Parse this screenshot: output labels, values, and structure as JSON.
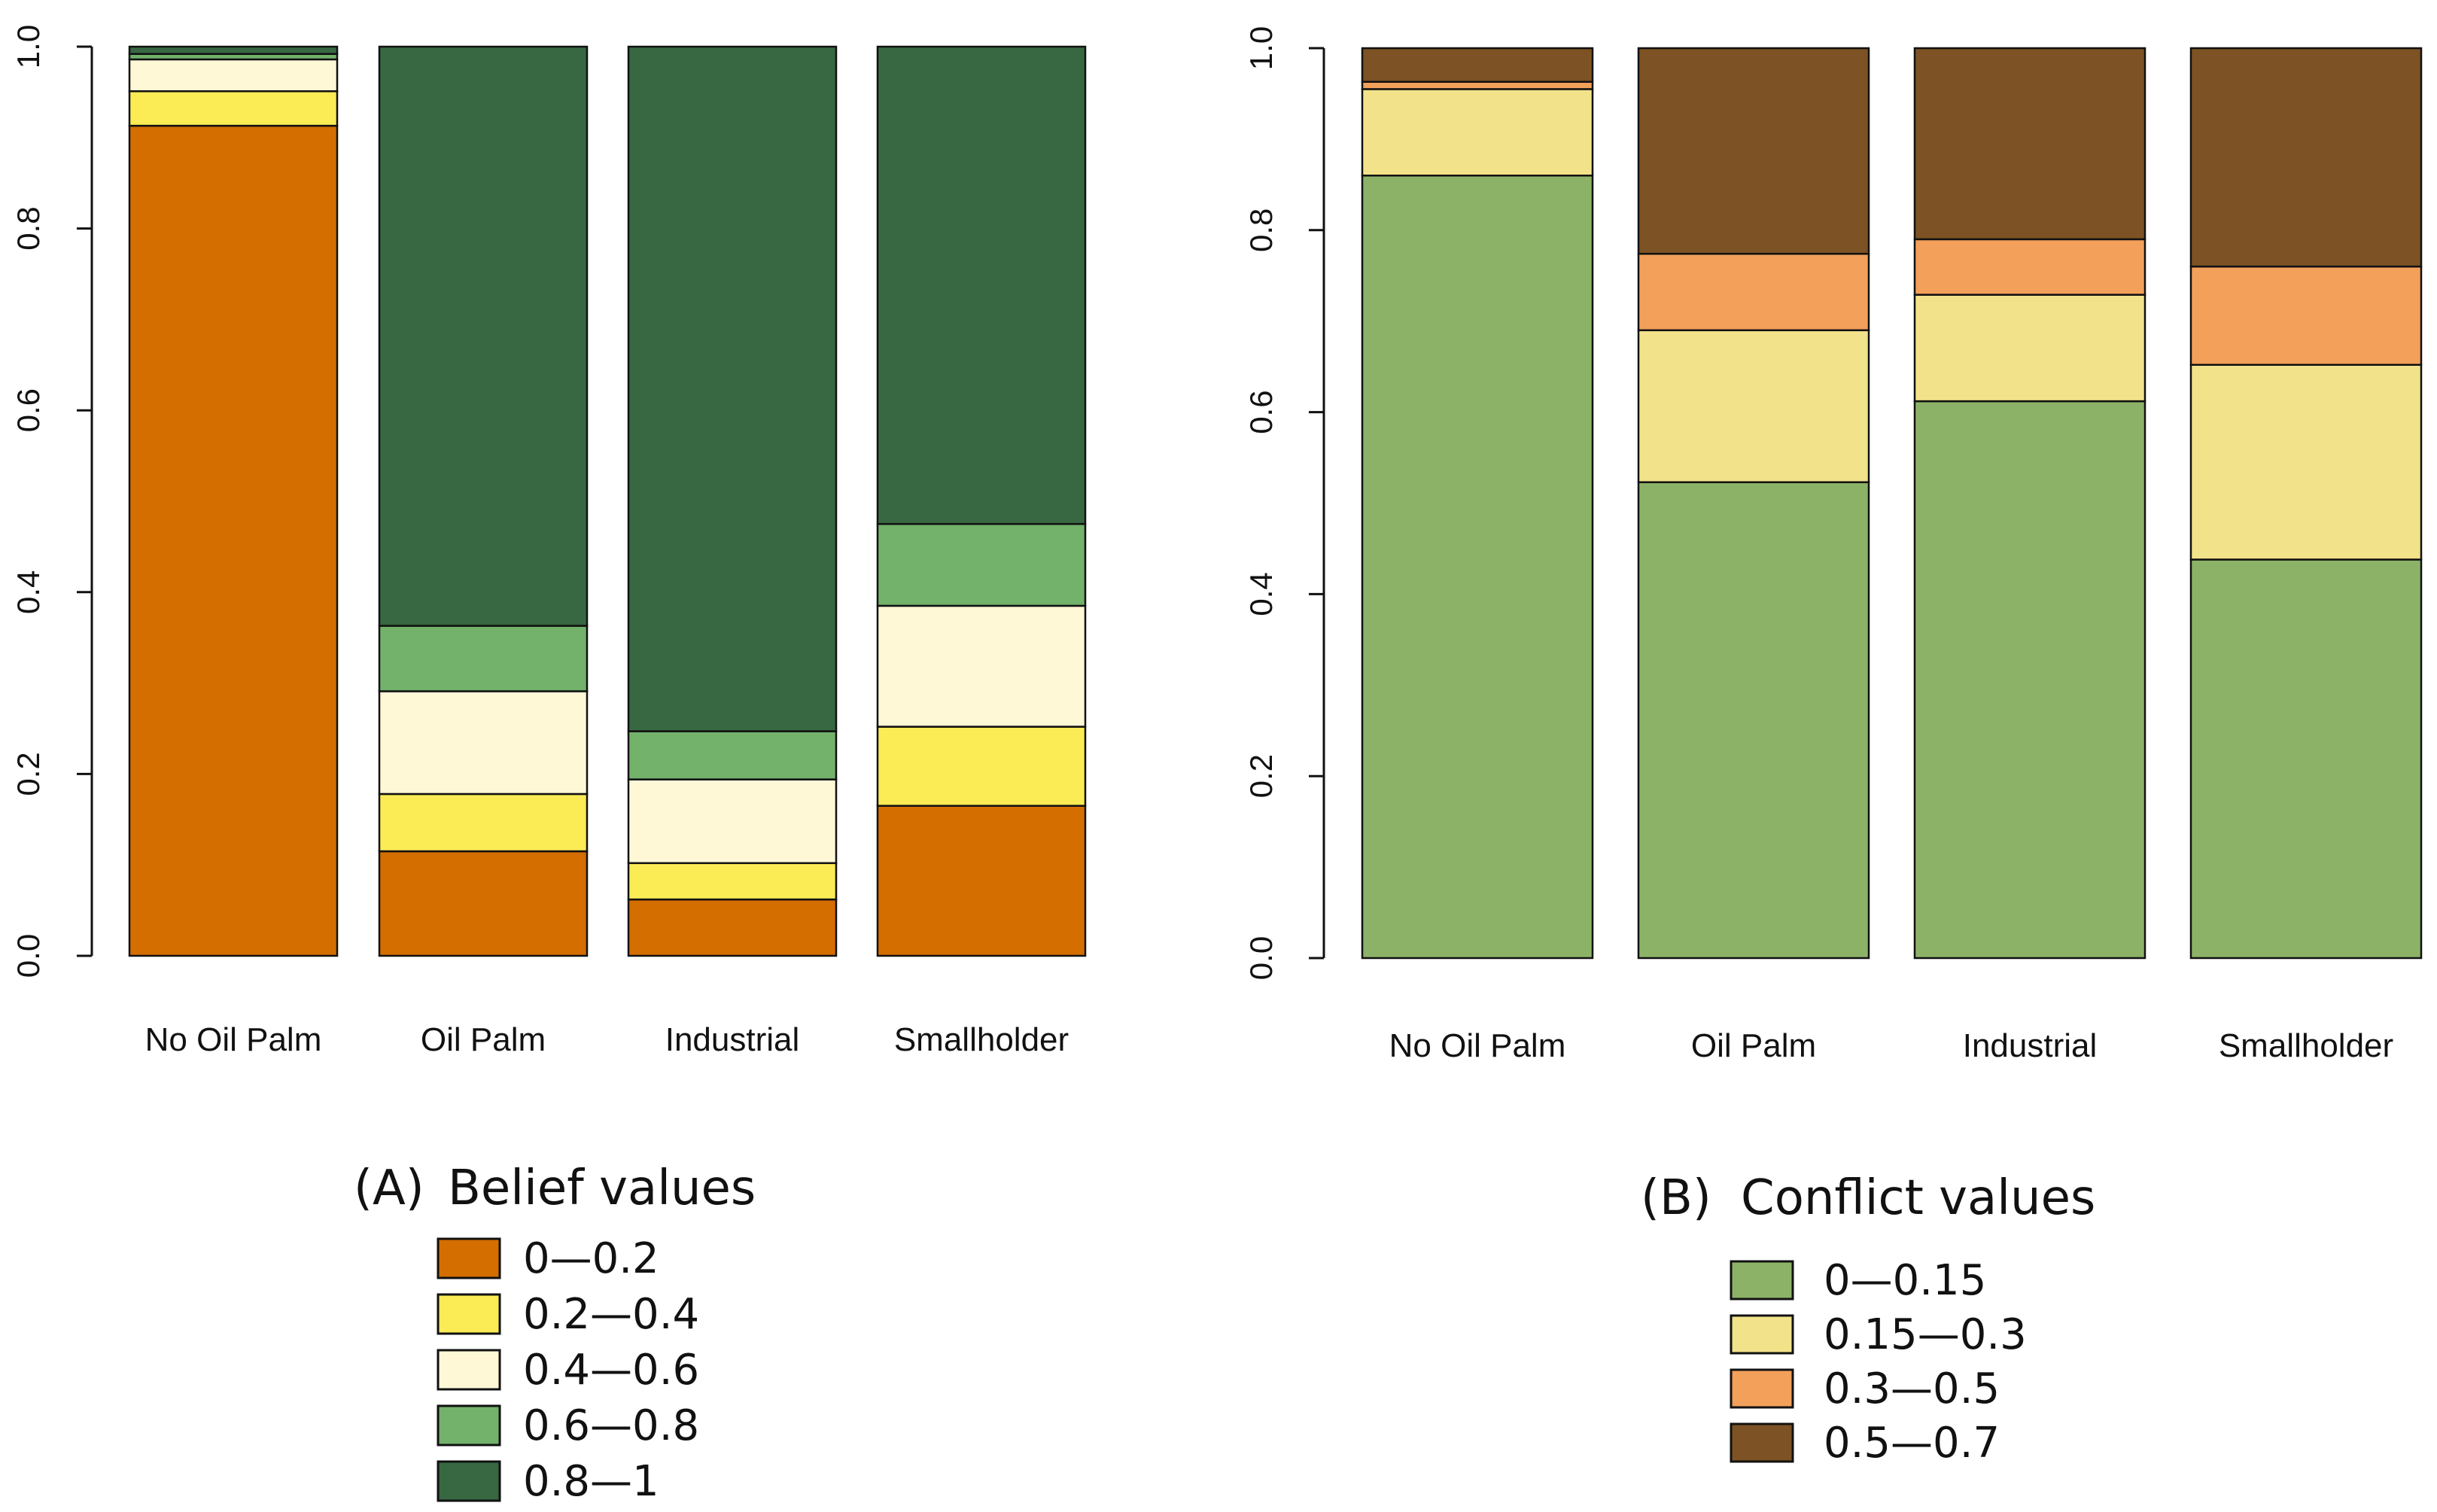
{
  "chart_data": [
    {
      "type": "bar",
      "stacked": true,
      "panel_label": "(A)",
      "title": "Belief values",
      "categories": [
        "No Oil Palm",
        "Oil Palm",
        "Industrial",
        "Smallholder"
      ],
      "ylim": [
        0,
        1
      ],
      "yticks": [
        "0.0",
        "0.2",
        "0.4",
        "0.6",
        "0.8",
        "1.0"
      ],
      "series": [
        {
          "name": "0—0.2",
          "color": "#D46E00",
          "values": [
            0.913,
            0.115,
            0.062,
            0.165
          ]
        },
        {
          "name": "0.2—0.4",
          "color": "#FBEB55",
          "values": [
            0.038,
            0.063,
            0.04,
            0.087
          ]
        },
        {
          "name": "0.4—0.6",
          "color": "#FFF8D7",
          "values": [
            0.035,
            0.113,
            0.092,
            0.133
          ]
        },
        {
          "name": "0.6—0.8",
          "color": "#72B26B",
          "values": [
            0.006,
            0.072,
            0.053,
            0.09
          ]
        },
        {
          "name": "0.8—1",
          "color": "#376842",
          "values": [
            0.008,
            0.637,
            0.753,
            0.525
          ]
        }
      ]
    },
    {
      "type": "bar",
      "stacked": true,
      "panel_label": "(B)",
      "title": "Conflict values",
      "categories": [
        "No Oil Palm",
        "Oil Palm",
        "Industrial",
        "Smallholder"
      ],
      "ylim": [
        0,
        1
      ],
      "yticks": [
        "0.0",
        "0.2",
        "0.4",
        "0.6",
        "0.8",
        "1.0"
      ],
      "series": [
        {
          "name": "0—0.15",
          "color": "#8CB267",
          "values": [
            0.86,
            0.523,
            0.612,
            0.438
          ]
        },
        {
          "name": "0.15—0.3",
          "color": "#F2E28A",
          "values": [
            0.095,
            0.167,
            0.117,
            0.214
          ]
        },
        {
          "name": "0.3—0.5",
          "color": "#F2A05A",
          "values": [
            0.008,
            0.084,
            0.061,
            0.108
          ]
        },
        {
          "name": "0.5—0.7",
          "color": "#7D5224",
          "values": [
            0.037,
            0.226,
            0.21,
            0.24
          ]
        }
      ]
    }
  ]
}
